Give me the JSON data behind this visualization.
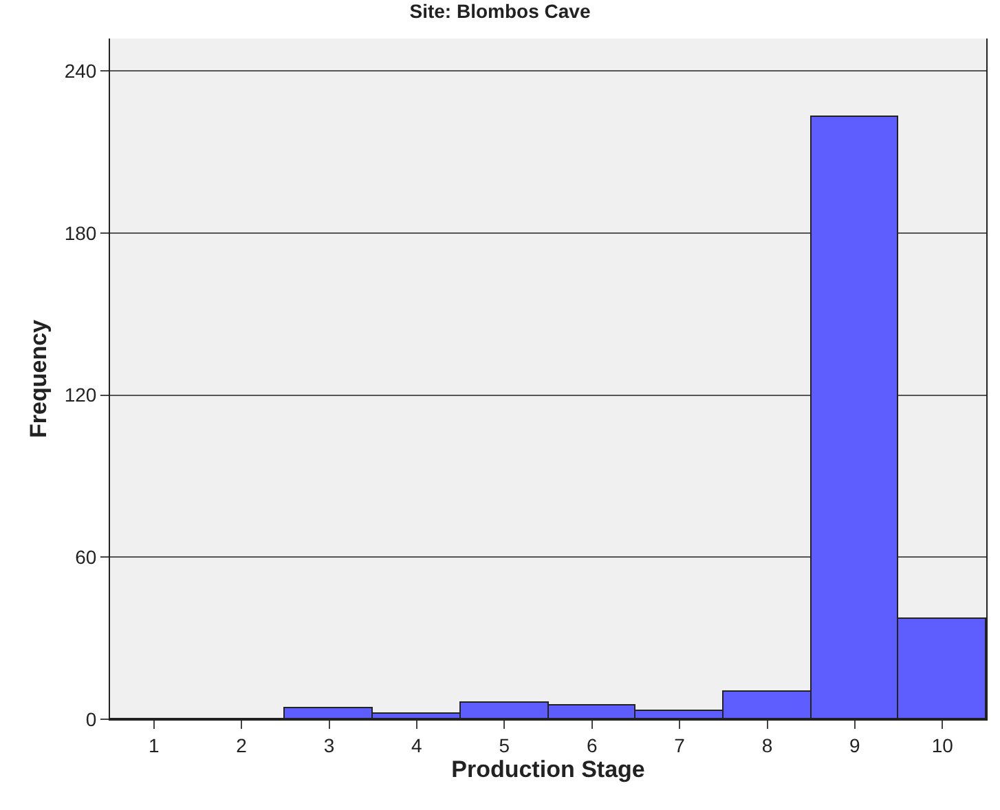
{
  "chart_data": {
    "type": "bar",
    "title": "Site: Blombos Cave",
    "xlabel": "Production Stage",
    "ylabel": "Frequency",
    "categories": [
      "1",
      "2",
      "3",
      "4",
      "5",
      "6",
      "7",
      "8",
      "9",
      "10"
    ],
    "values": [
      0,
      0,
      4,
      2,
      6,
      5,
      3,
      10,
      223,
      37
    ],
    "color": "#5e5eff",
    "ylim": [
      0,
      252
    ],
    "yticks": [
      0,
      60,
      120,
      180,
      240
    ],
    "grid": "y",
    "legend": false
  }
}
